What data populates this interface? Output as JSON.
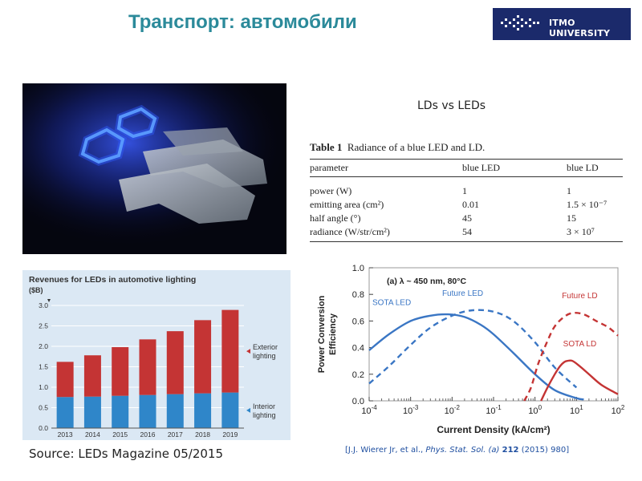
{
  "slide": {
    "title": "Транспорт: автомобили",
    "logo_text": "ITMO UNIVERSITY",
    "source": "Source: LEDs Magazine 05/2015",
    "reference": {
      "pre": "[J.J. Wierer Jr, et al., ",
      "journal": "Phys. Stat. Sol. (a)",
      "volume": "212",
      "post": " (2015) 980]"
    }
  },
  "table": {
    "heading": "LDs vs LEDs",
    "caption_label": "Table 1",
    "caption_text": "Radiance of a blue LED and LD.",
    "headers": [
      "parameter",
      "blue LED",
      "blue LD"
    ],
    "rows": [
      [
        "power (W)",
        "1",
        "1"
      ],
      [
        "emitting area (cm²)",
        "0.01",
        "1.5 × 10⁻⁷"
      ],
      [
        "half angle (°)",
        "45",
        "15"
      ],
      [
        "radiance (W/str/cm²)",
        "54",
        "3 × 10⁷"
      ]
    ]
  },
  "chart_data": [
    {
      "type": "bar",
      "title": "Revenues for LEDs in automotive lighting",
      "ylabel": "($B)",
      "categories": [
        "2013",
        "2014",
        "2015",
        "2016",
        "2017",
        "2018",
        "2019"
      ],
      "ylim": [
        0,
        3.0
      ],
      "yticks": [
        "0.0",
        "0.5",
        "1.0",
        "1.5",
        "2.0",
        "2.5",
        "3.0"
      ],
      "stacked": true,
      "series": [
        {
          "name": "Interior lighting",
          "values": [
            0.76,
            0.77,
            0.79,
            0.81,
            0.83,
            0.85,
            0.87
          ],
          "color": "#2f86c9"
        },
        {
          "name": "Exterior lighting",
          "values": [
            0.86,
            1.01,
            1.19,
            1.36,
            1.54,
            1.79,
            2.02
          ],
          "color": "#c43434"
        }
      ],
      "legend": [
        "Exterior lighting",
        "Interior lighting"
      ]
    },
    {
      "type": "line",
      "annotation": "(a) λ ~ 450 nm, 80°C",
      "xlabel": "Current Density (kA/cm²)",
      "ylabel": "Power Conversion Efficiency",
      "xscale": "log",
      "xlim": [
        0.0001,
        100
      ],
      "ylim": [
        0,
        1.0
      ],
      "xticks": [
        "10-4",
        "10-3",
        "10-2",
        "10-1",
        "100",
        "101",
        "102"
      ],
      "yticks": [
        "0.0",
        "0.2",
        "0.4",
        "0.6",
        "0.8",
        "1.0"
      ],
      "series": [
        {
          "name": "SOTA LED",
          "color": "#3a76c4",
          "dashed": false,
          "x": [
            0.0001,
            0.0003,
            0.001,
            0.003,
            0.008,
            0.02,
            0.05,
            0.1,
            0.3,
            1,
            3,
            10,
            15
          ],
          "y": [
            0.38,
            0.5,
            0.6,
            0.64,
            0.65,
            0.63,
            0.57,
            0.5,
            0.36,
            0.2,
            0.08,
            0.02,
            0.01
          ]
        },
        {
          "name": "Future LED",
          "color": "#3a76c4",
          "dashed": true,
          "x": [
            0.0001,
            0.0003,
            0.001,
            0.003,
            0.01,
            0.03,
            0.1,
            0.3,
            1,
            3,
            10
          ],
          "y": [
            0.13,
            0.26,
            0.42,
            0.55,
            0.64,
            0.68,
            0.67,
            0.6,
            0.44,
            0.25,
            0.1
          ]
        },
        {
          "name": "Future LD",
          "color": "#c43434",
          "dashed": true,
          "x": [
            0.55,
            0.8,
            1.2,
            2,
            3,
            5,
            8,
            15,
            30,
            60,
            100
          ],
          "y": [
            0.0,
            0.1,
            0.28,
            0.45,
            0.56,
            0.63,
            0.66,
            0.65,
            0.6,
            0.55,
            0.49
          ]
        },
        {
          "name": "SOTA LD",
          "color": "#c43434",
          "dashed": false,
          "x": [
            1.4,
            2,
            3,
            4,
            5,
            6,
            8,
            12,
            20,
            40,
            100
          ],
          "y": [
            0.0,
            0.1,
            0.2,
            0.26,
            0.29,
            0.3,
            0.3,
            0.26,
            0.2,
            0.12,
            0.05
          ]
        }
      ]
    }
  ]
}
